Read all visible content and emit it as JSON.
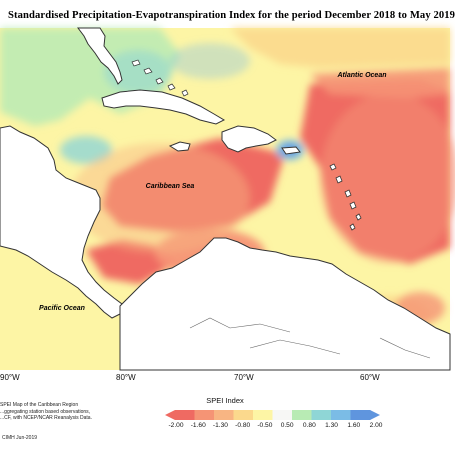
{
  "title": "Standardised Precipitation-Evapotranspiration Index for the period December 2018 to May 2019",
  "labels": {
    "atlantic": "Atlantic Ocean",
    "caribbean": "Caribbean Sea",
    "pacific": "Pacific Ocean"
  },
  "axis_ticks": [
    "90°W",
    "80°W",
    "70°W",
    "60°W"
  ],
  "legend": {
    "title": "SPEI Index",
    "values": [
      "-2.00",
      "-1.60",
      "-1.30",
      "-0.80",
      "-0.50",
      "0.50",
      "0.80",
      "1.30",
      "1.60",
      "2.00"
    ],
    "colors": [
      "#ef6a62",
      "#f59475",
      "#f8b583",
      "#fbd98d",
      "#fdf5a5",
      "#f7f7f5",
      "#b8ebb4",
      "#8fd6d6",
      "#7bbce6",
      "#5f95de"
    ]
  },
  "notes": {
    "line1": "SPEI Map of the Caribbean Region",
    "line2": "...ggregating station based observations,",
    "line3": "...CF, with NCEP/NCAR Reanalysis Data.",
    "credit": "CIMH Jun-2019"
  },
  "colors": {
    "land": "#ffffff",
    "coast": "#333333"
  }
}
